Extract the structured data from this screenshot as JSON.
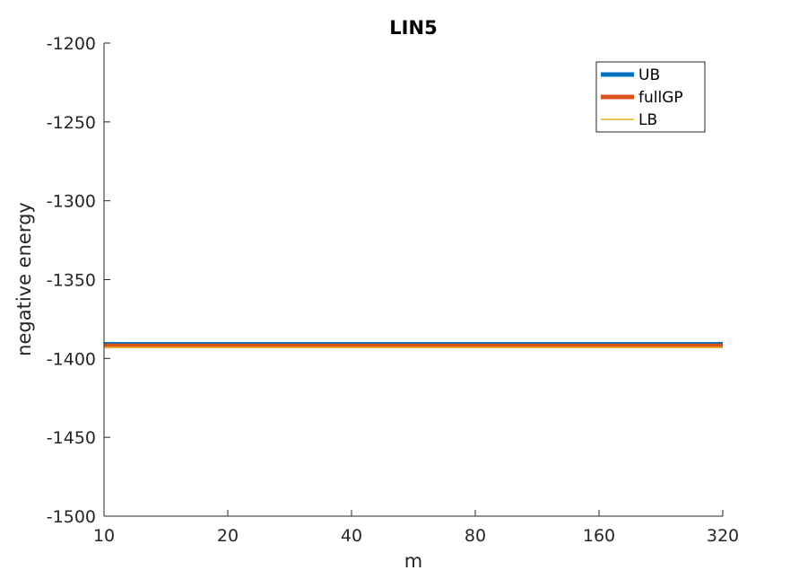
{
  "chart_data": {
    "type": "line",
    "title": "LIN5",
    "xlabel": "m",
    "ylabel": "negative energy",
    "x": [
      10,
      20,
      40,
      80,
      160,
      320
    ],
    "x_scale": "log2",
    "xticks": [
      "10",
      "20",
      "40",
      "80",
      "160",
      "320"
    ],
    "xlim": [
      10,
      320
    ],
    "ylim": [
      -1500,
      -1200
    ],
    "yticks": [
      "-1200",
      "-1250",
      "-1300",
      "-1350",
      "-1400",
      "-1450",
      "-1500"
    ],
    "grid": false,
    "legend_position": "top-right",
    "series": [
      {
        "name": "UB",
        "color": "#0072BD",
        "line_width": "thick",
        "values": [
          -1391,
          -1391,
          -1391,
          -1391,
          -1391,
          -1391
        ]
      },
      {
        "name": "fullGP",
        "color": "#D95319",
        "line_width": "thick",
        "values": [
          -1392,
          -1392,
          -1392,
          -1392,
          -1392,
          -1392
        ]
      },
      {
        "name": "LB",
        "color": "#EDB120",
        "line_width": "thin",
        "values": [
          -1393,
          -1393,
          -1393,
          -1393,
          -1393,
          -1393
        ]
      }
    ]
  }
}
